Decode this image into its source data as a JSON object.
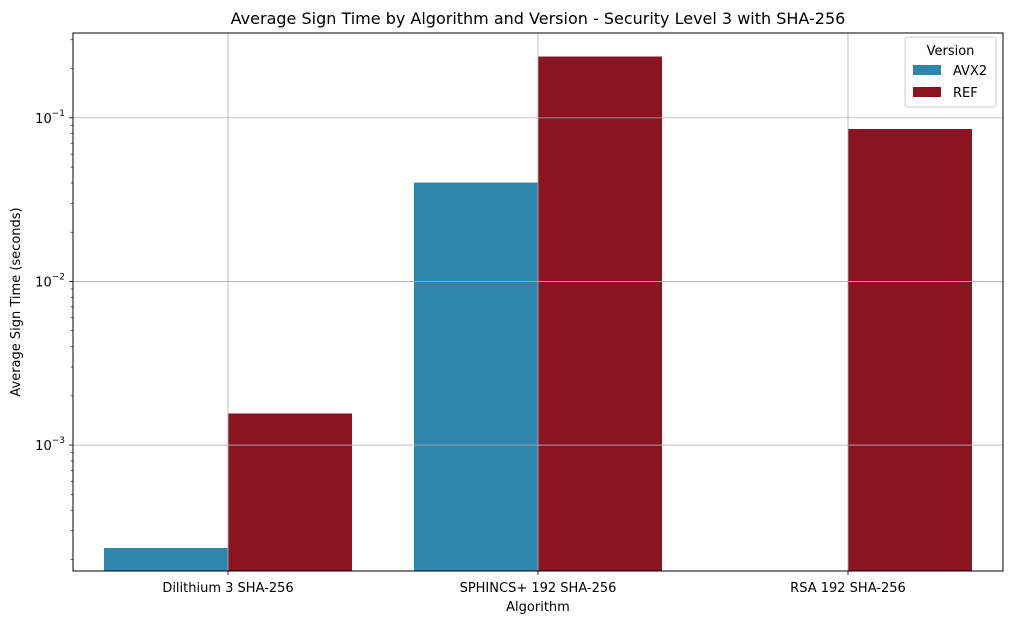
{
  "chart_data": {
    "type": "bar",
    "title": "Average Sign Time by Algorithm and Version - Security Level 3 with SHA-256",
    "xlabel": "Algorithm",
    "ylabel": "Average Sign Time (seconds)",
    "yscale": "log",
    "ylim": [
      0.00017,
      0.33
    ],
    "grid": true,
    "legend": {
      "title": "Version",
      "position": "top-right"
    },
    "categories": [
      "Dilithium 3 SHA-256",
      "SPHINCS+ 192 SHA-256",
      "RSA 192 SHA-256"
    ],
    "series": [
      {
        "name": "AVX2",
        "color": "#2e86ad",
        "values": [
          0.000235,
          0.0402,
          null
        ]
      },
      {
        "name": "REF",
        "color": "#8b1423",
        "values": [
          0.00156,
          0.237,
          0.0855
        ]
      }
    ],
    "y_ticks": [
      {
        "value": 0.001,
        "base": "10",
        "exp": "−3"
      },
      {
        "value": 0.01,
        "base": "10",
        "exp": "−2"
      },
      {
        "value": 0.1,
        "base": "10",
        "exp": "−1"
      }
    ]
  }
}
